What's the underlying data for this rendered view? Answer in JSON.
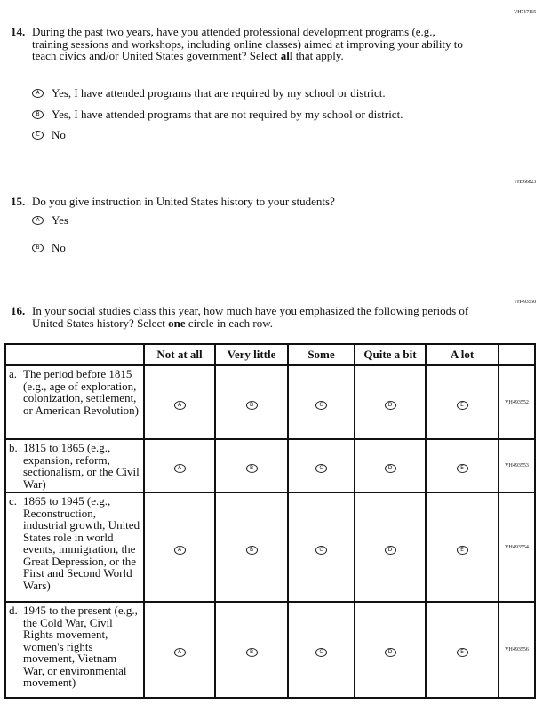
{
  "q14": {
    "id": "VH717115",
    "number": "14.",
    "text_pre": "During the past two years, have you attended professional development programs (e.g., training sessions and workshops, including online classes) aimed at improving your ability to teach civics and/or United States government? Select ",
    "text_bold": "all",
    "text_post": " that apply.",
    "options": [
      {
        "key": "A",
        "label": "Yes, I have attended programs that are required by my school or district."
      },
      {
        "key": "B",
        "label": "Yes, I have attended programs that are not required by my school or district."
      },
      {
        "key": "C",
        "label": "No"
      }
    ]
  },
  "q15": {
    "id": "VH566823",
    "number": "15.",
    "text": "Do you give instruction in United States history to your students?",
    "options": [
      {
        "key": "A",
        "label": "Yes"
      },
      {
        "key": "B",
        "label": "No"
      }
    ]
  },
  "q16": {
    "id": "VH493550",
    "number": "16.",
    "text_pre": "In your social studies class this year, how much have you emphasized the following periods of United States history? Select ",
    "text_bold": "one",
    "text_post": " circle in each row.",
    "columns": [
      "Not at all",
      "Very little",
      "Some",
      "Quite a bit",
      "A lot"
    ],
    "keys": [
      "A",
      "B",
      "C",
      "D",
      "E"
    ],
    "rows": [
      {
        "letter": "a.",
        "label": "The period before 1815 (e.g., age of exploration, colonization, settlement, or American Revolution)",
        "id": "VH493552"
      },
      {
        "letter": "b.",
        "label": "1815 to 1865 (e.g., expansion, reform, sectionalism, or the Civil War)",
        "id": "VH493553"
      },
      {
        "letter": "c.",
        "label": "1865 to 1945 (e.g., Reconstruction, industrial growth, United States role in world events, immigration, the Great Depression, or the First and Second World Wars)",
        "id": "VH493554"
      },
      {
        "letter": "d.",
        "label": "1945 to the present (e.g., the Cold War, Civil Rights movement, women's rights movement, Vietnam War, or environmental movement)",
        "id": "VH493556"
      }
    ]
  }
}
